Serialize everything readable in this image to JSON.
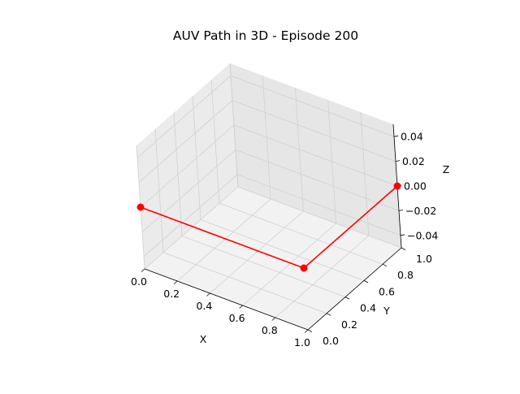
{
  "figure": {
    "background": "#ffffff"
  },
  "chart_data": {
    "type": "line3d",
    "title": "AUV Path in 3D - Episode 200",
    "xlabel": "X",
    "ylabel": "Y",
    "zlabel": "Z",
    "xlim": [
      0,
      1
    ],
    "ylim": [
      0,
      1
    ],
    "zlim": [
      -0.05,
      0.05
    ],
    "x_ticks": [
      "0.0",
      "0.2",
      "0.4",
      "0.6",
      "0.8",
      "1.0"
    ],
    "y_ticks": [
      "0.0",
      "0.2",
      "0.4",
      "0.6",
      "0.8",
      "1.0"
    ],
    "z_ticks": [
      "−0.04",
      "−0.02",
      "0.00",
      "0.02",
      "0.04"
    ],
    "grid": true,
    "series": [
      {
        "color": "#ff0000",
        "marker": "circle",
        "points": [
          {
            "x": 0,
            "y": 0,
            "z": 0
          },
          {
            "x": 1,
            "y": 0,
            "z": 0
          },
          {
            "x": 1,
            "y": 1,
            "z": 0
          }
        ]
      }
    ],
    "pane_colors": [
      "#f2f2f2",
      "#ebebeb",
      "#e6e6e6"
    ],
    "grid_color": "#d0d0d0"
  }
}
